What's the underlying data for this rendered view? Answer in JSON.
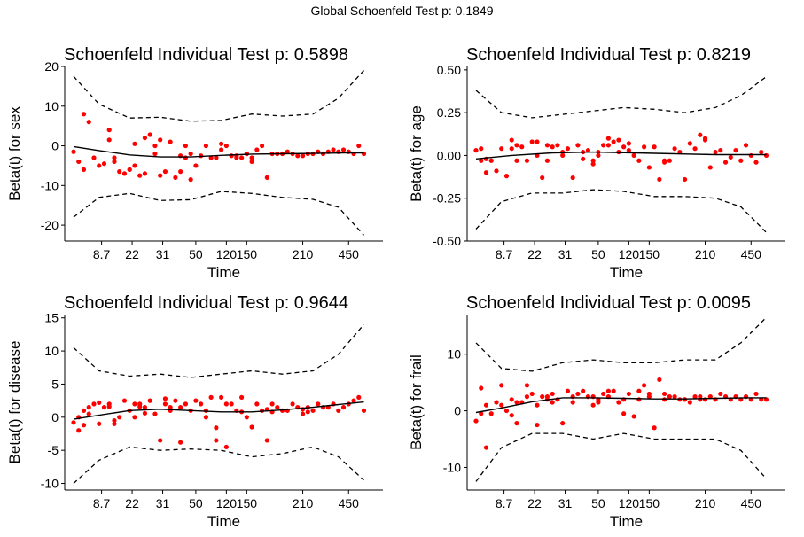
{
  "global_title": "Global Schoenfeld Test p: 0.1849",
  "colors": {
    "points": "#ff0000",
    "smooth": "#000000",
    "axis": "#000000"
  },
  "x_tick_labels": [
    "8.7",
    "22",
    "31",
    "50",
    "120",
    "150",
    "210",
    "450"
  ],
  "x_ticks_rank": [
    6.5,
    12.5,
    18.5,
    25,
    31,
    35,
    46,
    55
  ],
  "chart_data": [
    {
      "type": "scatter",
      "title": "Schoenfeld Individual Test p: 0.5898",
      "xlabel": "Time",
      "ylabel": "Beta(t) for sex",
      "xlim": [
        1,
        60
      ],
      "ylim": [
        -24,
        20
      ],
      "yticks": [
        20,
        10,
        0,
        -10,
        -20
      ],
      "ytick_labels": [
        "20",
        "10",
        "0",
        "-10",
        "-20"
      ],
      "x": [
        1,
        2,
        3,
        4,
        5,
        6,
        7,
        8,
        9,
        10,
        11,
        12,
        13,
        14,
        15,
        16,
        17,
        18,
        19,
        20,
        21,
        22,
        23,
        24,
        25,
        26,
        27,
        28,
        29,
        30,
        31,
        32,
        33,
        34,
        35,
        36,
        37,
        38,
        39,
        40,
        41,
        42,
        43,
        44,
        45,
        46,
        47,
        48,
        49,
        50,
        51,
        52,
        53,
        54,
        55,
        56,
        57,
        58
      ],
      "points": [
        -1.5,
        -4,
        8,
        6,
        -3,
        -5,
        -4.5,
        1.5,
        -3,
        -6.5,
        -7,
        -6,
        0.5,
        -7.5,
        -7,
        2.8,
        0,
        -7.5,
        -6.5,
        1,
        -8,
        -2.5,
        0,
        -8.5,
        -5,
        -2.5,
        0,
        -3,
        -3,
        0.5,
        0,
        -2.5,
        -2.5,
        -3,
        -2,
        -3,
        -1,
        0,
        -8,
        -2,
        -2,
        -2,
        -1.5,
        -2,
        -2.5,
        -2.5,
        -2,
        -2,
        -1.5,
        -2,
        -1.5,
        -1,
        -1.5,
        -1,
        -1.5,
        -2,
        0,
        -2
      ],
      "extra_points": [
        [
          3,
          -6
        ],
        [
          8,
          4
        ],
        [
          9,
          -4
        ],
        [
          12,
          -6
        ],
        [
          13,
          -5
        ],
        [
          15,
          2
        ],
        [
          17,
          -2
        ],
        [
          18,
          1.5
        ],
        [
          22,
          -6.5
        ],
        [
          23,
          -3
        ],
        [
          24,
          -2
        ],
        [
          29,
          -3
        ],
        [
          30,
          -1
        ],
        [
          33,
          -3
        ],
        [
          35,
          -2
        ],
        [
          36,
          -4
        ]
      ],
      "smooth": [
        [
          1,
          -0.2
        ],
        [
          6,
          -1.2
        ],
        [
          12,
          -2.3
        ],
        [
          18,
          -2.8
        ],
        [
          24,
          -2.8
        ],
        [
          30,
          -2.4
        ],
        [
          36,
          -2.1
        ],
        [
          42,
          -2.0
        ],
        [
          48,
          -1.9
        ],
        [
          54,
          -1.8
        ],
        [
          58,
          -1.8
        ]
      ],
      "upper": [
        [
          1,
          17.5
        ],
        [
          6,
          10.5
        ],
        [
          12,
          7
        ],
        [
          18,
          7.2
        ],
        [
          24,
          6.2
        ],
        [
          30,
          6.4
        ],
        [
          36,
          8
        ],
        [
          42,
          7.5
        ],
        [
          48,
          8
        ],
        [
          53,
          12
        ],
        [
          58,
          19
        ]
      ],
      "lower": [
        [
          1,
          -18
        ],
        [
          6,
          -13
        ],
        [
          12,
          -12
        ],
        [
          18,
          -13.8
        ],
        [
          24,
          -13.6
        ],
        [
          30,
          -11.5
        ],
        [
          36,
          -12
        ],
        [
          42,
          -13
        ],
        [
          48,
          -13.5
        ],
        [
          53,
          -15.5
        ],
        [
          58,
          -22.5
        ]
      ]
    },
    {
      "type": "scatter",
      "title": "Schoenfeld Individual Test p: 0.8219",
      "xlabel": "Time",
      "ylabel": "Beta(t) for age",
      "xlim": [
        1,
        60
      ],
      "ylim": [
        -0.5,
        0.52
      ],
      "yticks": [
        0.5,
        0.25,
        0,
        -0.25,
        -0.5
      ],
      "ytick_labels": [
        "0.50",
        "0.25",
        "0.00",
        "-0.25",
        "-0.50"
      ],
      "x": [
        1,
        2,
        3,
        4,
        5,
        6,
        7,
        8,
        9,
        10,
        11,
        12,
        13,
        14,
        15,
        16,
        17,
        18,
        19,
        20,
        21,
        22,
        23,
        24,
        25,
        26,
        27,
        28,
        29,
        30,
        31,
        32,
        33,
        34,
        35,
        36,
        37,
        38,
        39,
        40,
        41,
        42,
        43,
        44,
        45,
        46,
        47,
        48,
        49,
        50,
        51,
        52,
        53,
        54,
        55,
        56,
        57,
        58
      ],
      "points": [
        0.03,
        0.04,
        -0.02,
        -0.03,
        -0.09,
        0.04,
        -0.12,
        0.09,
        0.06,
        0.05,
        -0.03,
        0.08,
        0,
        -0.13,
        0.06,
        0.05,
        0.06,
        0,
        0.04,
        -0.13,
        0.06,
        -0.02,
        0.03,
        -0.03,
        0,
        0.06,
        0.1,
        0.08,
        0.09,
        0.05,
        0.03,
        0,
        -0.03,
        0.05,
        -0.07,
        0.05,
        -0.14,
        -0.04,
        -0.03,
        0.04,
        0.02,
        -0.14,
        0.07,
        0.04,
        0.12,
        0.09,
        -0.07,
        0.02,
        0.03,
        -0.04,
        -0.01,
        0.03,
        -0.03,
        0.06,
        0,
        -0.04,
        0.02,
        0
      ],
      "extra_points": [
        [
          2,
          -0.03
        ],
        [
          3,
          -0.1
        ],
        [
          8,
          0.04
        ],
        [
          9,
          -0.03
        ],
        [
          13,
          0.08
        ],
        [
          15,
          -0.03
        ],
        [
          18,
          0.02
        ],
        [
          22,
          0.02
        ],
        [
          24,
          -0.05
        ],
        [
          25,
          0.02
        ],
        [
          27,
          0.06
        ],
        [
          29,
          0.02
        ],
        [
          31,
          0.07
        ],
        [
          38,
          -0.03
        ],
        [
          46,
          0.1
        ]
      ],
      "smooth": [
        [
          1,
          -0.02
        ],
        [
          8,
          0
        ],
        [
          16,
          0.015
        ],
        [
          24,
          0.02
        ],
        [
          32,
          0.015
        ],
        [
          40,
          0.01
        ],
        [
          48,
          0.005
        ],
        [
          58,
          0.005
        ]
      ],
      "upper": [
        [
          1,
          0.38
        ],
        [
          6,
          0.25
        ],
        [
          12,
          0.22
        ],
        [
          18,
          0.24
        ],
        [
          24,
          0.26
        ],
        [
          30,
          0.28
        ],
        [
          36,
          0.27
        ],
        [
          42,
          0.25
        ],
        [
          48,
          0.28
        ],
        [
          53,
          0.35
        ],
        [
          58,
          0.46
        ]
      ],
      "lower": [
        [
          1,
          -0.43
        ],
        [
          6,
          -0.27
        ],
        [
          12,
          -0.22
        ],
        [
          18,
          -0.22
        ],
        [
          24,
          -0.2
        ],
        [
          30,
          -0.21
        ],
        [
          36,
          -0.24
        ],
        [
          42,
          -0.24
        ],
        [
          48,
          -0.25
        ],
        [
          53,
          -0.3
        ],
        [
          58,
          -0.45
        ]
      ]
    },
    {
      "type": "scatter",
      "title": "Schoenfeld Individual Test p: 0.9644",
      "xlabel": "Time",
      "ylabel": "Beta(t) for disease",
      "xlim": [
        1,
        60
      ],
      "ylim": [
        -11,
        15.5
      ],
      "yticks": [
        15,
        10,
        5,
        0,
        -5,
        -10
      ],
      "ytick_labels": [
        "15",
        "10",
        "5",
        "0",
        "-5",
        "-10"
      ],
      "x": [
        1,
        2,
        3,
        4,
        5,
        6,
        7,
        8,
        9,
        10,
        11,
        12,
        13,
        14,
        15,
        16,
        17,
        18,
        19,
        20,
        21,
        22,
        23,
        24,
        25,
        26,
        27,
        28,
        29,
        30,
        31,
        32,
        33,
        34,
        35,
        36,
        37,
        38,
        39,
        40,
        41,
        42,
        43,
        44,
        45,
        46,
        47,
        48,
        49,
        50,
        51,
        52,
        53,
        54,
        55,
        56,
        57,
        58
      ],
      "points": [
        -0.8,
        -2,
        1,
        0.5,
        2,
        -1,
        1.5,
        2,
        -0.5,
        0,
        2.5,
        1,
        0,
        2,
        1.5,
        2.5,
        0.5,
        -3.5,
        2,
        1.5,
        2.5,
        1.5,
        2,
        1,
        2.5,
        2,
        0,
        3,
        -3.5,
        3,
        2,
        2,
        1,
        3,
        0,
        -1.5,
        2,
        1,
        -3.5,
        2,
        1.5,
        1,
        1,
        2,
        1.5,
        0.5,
        1.5,
        1,
        2,
        1.5,
        1.5,
        2,
        1,
        1.5,
        2,
        2.5,
        3,
        1
      ],
      "extra_points": [
        [
          2,
          0
        ],
        [
          3,
          -1.2
        ],
        [
          4,
          1.5
        ],
        [
          6,
          2.2
        ],
        [
          8,
          1.6
        ],
        [
          9,
          -1
        ],
        [
          13,
          2
        ],
        [
          14,
          1.6
        ],
        [
          15,
          0.6
        ],
        [
          19,
          2.8
        ],
        [
          20,
          1
        ],
        [
          22,
          -3.8
        ],
        [
          27,
          1
        ],
        [
          29,
          -1.6
        ],
        [
          31,
          -4.5
        ],
        [
          34,
          0.8
        ],
        [
          39,
          1.2
        ],
        [
          40,
          0.8
        ],
        [
          46,
          1.2
        ],
        [
          47,
          0.8
        ]
      ],
      "smooth": [
        [
          1,
          -0.3
        ],
        [
          6,
          0.3
        ],
        [
          12,
          1
        ],
        [
          18,
          1.2
        ],
        [
          24,
          1
        ],
        [
          30,
          0.8
        ],
        [
          36,
          0.8
        ],
        [
          42,
          1.1
        ],
        [
          48,
          1.5
        ],
        [
          54,
          2
        ],
        [
          58,
          2.3
        ]
      ],
      "upper": [
        [
          1,
          10.5
        ],
        [
          6,
          7
        ],
        [
          12,
          6.2
        ],
        [
          18,
          6.5
        ],
        [
          24,
          6
        ],
        [
          30,
          6.5
        ],
        [
          36,
          7
        ],
        [
          42,
          6.5
        ],
        [
          48,
          7
        ],
        [
          53,
          9.5
        ],
        [
          58,
          14
        ]
      ],
      "lower": [
        [
          1,
          -10
        ],
        [
          6,
          -6.5
        ],
        [
          12,
          -4.5
        ],
        [
          18,
          -5
        ],
        [
          24,
          -4.8
        ],
        [
          30,
          -5
        ],
        [
          36,
          -6
        ],
        [
          42,
          -5.5
        ],
        [
          48,
          -4.5
        ],
        [
          53,
          -6
        ],
        [
          58,
          -9.5
        ]
      ]
    },
    {
      "type": "scatter",
      "title": "Schoenfeld Individual Test p: 0.0095",
      "xlabel": "Time",
      "ylabel": "Beta(t) for frail",
      "xlim": [
        1,
        60
      ],
      "ylim": [
        -14,
        17
      ],
      "yticks": [
        10,
        0,
        -10
      ],
      "ytick_labels": [
        "10",
        "0",
        "-10"
      ],
      "x": [
        1,
        2,
        3,
        4,
        5,
        6,
        7,
        8,
        9,
        10,
        11,
        12,
        13,
        14,
        15,
        16,
        17,
        18,
        19,
        20,
        21,
        22,
        23,
        24,
        25,
        26,
        27,
        28,
        29,
        30,
        31,
        32,
        33,
        34,
        35,
        36,
        37,
        38,
        39,
        40,
        41,
        42,
        43,
        44,
        45,
        46,
        47,
        48,
        49,
        50,
        51,
        52,
        53,
        54,
        55,
        56,
        57,
        58
      ],
      "points": [
        -1.8,
        4,
        -6.5,
        -0.5,
        1.5,
        4.5,
        0,
        2,
        -2.2,
        1.5,
        2.5,
        3,
        -2.5,
        2.5,
        2,
        3,
        2,
        -2.2,
        3.5,
        1.5,
        3,
        3.5,
        2.5,
        1,
        2,
        3,
        2.5,
        3.5,
        1.5,
        -0.5,
        3,
        -1,
        2,
        4.5,
        3,
        -3,
        5.5,
        2,
        2.5,
        2.5,
        2,
        2,
        1.5,
        2.5,
        2,
        2,
        2.5,
        2,
        3,
        2.5,
        2,
        2.5,
        2,
        2.5,
        2,
        3,
        2,
        2
      ],
      "extra_points": [
        [
          2,
          -0.5
        ],
        [
          3,
          1
        ],
        [
          6,
          1
        ],
        [
          8,
          -0.8
        ],
        [
          9,
          1.5
        ],
        [
          11,
          4.5
        ],
        [
          13,
          1
        ],
        [
          15,
          2.5
        ],
        [
          16,
          1.5
        ],
        [
          20,
          2.5
        ],
        [
          24,
          2.5
        ],
        [
          25,
          1.5
        ],
        [
          27,
          3.5
        ],
        [
          30,
          2
        ],
        [
          33,
          3.5
        ],
        [
          35,
          2.5
        ],
        [
          38,
          3
        ],
        [
          42,
          2
        ],
        [
          45,
          2.5
        ]
      ],
      "smooth": [
        [
          1,
          -0.3
        ],
        [
          6,
          0.5
        ],
        [
          12,
          1.6
        ],
        [
          18,
          2.3
        ],
        [
          24,
          2.3
        ],
        [
          30,
          2.2
        ],
        [
          36,
          2.1
        ],
        [
          42,
          2.1
        ],
        [
          48,
          2.2
        ],
        [
          54,
          2.3
        ],
        [
          58,
          2.3
        ]
      ],
      "upper": [
        [
          1,
          12
        ],
        [
          6,
          7.5
        ],
        [
          12,
          7
        ],
        [
          18,
          8.5
        ],
        [
          24,
          9
        ],
        [
          30,
          8.5
        ],
        [
          36,
          8.5
        ],
        [
          42,
          9
        ],
        [
          48,
          9
        ],
        [
          53,
          12
        ],
        [
          58,
          16.5
        ]
      ],
      "lower": [
        [
          1,
          -12.5
        ],
        [
          6,
          -6.5
        ],
        [
          12,
          -4
        ],
        [
          18,
          -4
        ],
        [
          24,
          -5
        ],
        [
          30,
          -4
        ],
        [
          36,
          -5
        ],
        [
          42,
          -5
        ],
        [
          48,
          -5
        ],
        [
          53,
          -7
        ],
        [
          58,
          -12
        ]
      ]
    }
  ]
}
